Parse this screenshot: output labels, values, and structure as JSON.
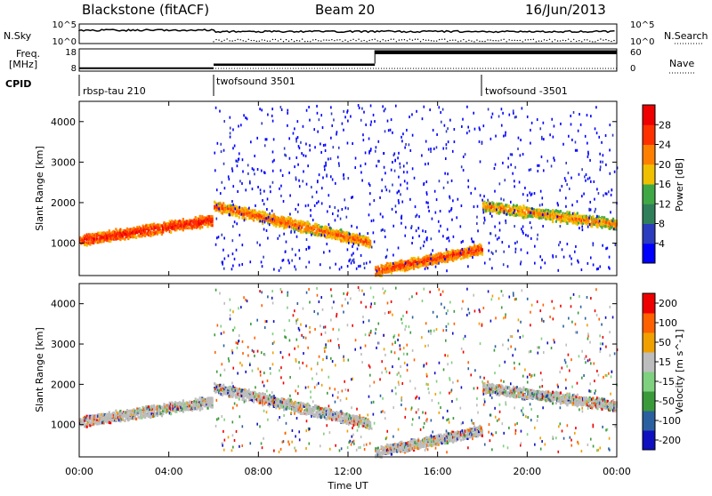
{
  "header": {
    "station": "Blackstone (fitACF)",
    "beam": "Beam 20",
    "date": "16/Jun/2013"
  },
  "top_panels": {
    "nsky": {
      "label": "N.Sky",
      "right_label": "N.Search",
      "ticks_left": [
        "10^5",
        "10^0"
      ],
      "ticks_right": [
        "10^5",
        "10^0"
      ]
    },
    "freq": {
      "label_line1": "Freq.",
      "label_line2": "[MHz]",
      "ticks_left": [
        "18",
        "8"
      ],
      "right_label": "Nave",
      "ticks_right": [
        "60",
        "0"
      ]
    },
    "cpid": {
      "label": "CPID",
      "segments": [
        {
          "name": "rbsp-tau 210",
          "start_hour": 0,
          "end_hour": 6
        },
        {
          "name": "twofsound 3501",
          "start_hour": 6,
          "end_hour": 18
        },
        {
          "name": "twofsound -3501",
          "start_hour": 18,
          "end_hour": 24
        }
      ]
    }
  },
  "chart_data": [
    {
      "type": "heatmap",
      "quantity": "power",
      "ylabel": "Slant Range [km]",
      "ylim": [
        200,
        4500
      ],
      "yticks": [
        1000,
        2000,
        3000,
        4000
      ],
      "xlim_hours": [
        0,
        24
      ],
      "colorbar": {
        "label": "Power [dB]",
        "ticks": [
          4,
          8,
          12,
          16,
          20,
          24,
          28
        ],
        "range": [
          0,
          32
        ],
        "colors": [
          "#0000ff",
          "#2c3cbe",
          "#2f7f5a",
          "#3fa844",
          "#f0c000",
          "#ff8000",
          "#ff3000",
          "#ee0000"
        ]
      },
      "features": [
        {
          "start_hour": 0.0,
          "end_hour": 5.9,
          "range_km": [
            1050,
            1550
          ],
          "level": 24
        },
        {
          "start_hour": 6.0,
          "end_hour": 13.0,
          "range_km": [
            1900,
            1000
          ],
          "level": 20
        },
        {
          "start_hour": 13.2,
          "end_hour": 18.0,
          "range_km": [
            300,
            850
          ],
          "level": 22
        },
        {
          "start_hour": 18.0,
          "end_hour": 24.0,
          "range_km": [
            1900,
            1450
          ],
          "level": 18
        }
      ]
    },
    {
      "type": "heatmap",
      "quantity": "velocity",
      "ylabel": "Slant Range [km]",
      "xlabel": "Time UT",
      "ylim": [
        200,
        4500
      ],
      "yticks": [
        1000,
        2000,
        3000,
        4000
      ],
      "xticks": [
        "00:00",
        "04:00",
        "08:00",
        "12:00",
        "16:00",
        "20:00",
        "00:00"
      ],
      "xlim_hours": [
        0,
        24
      ],
      "colorbar": {
        "label": "Velocity [m s^-1]",
        "ticks": [
          "200",
          "100",
          "50",
          "15",
          "-15",
          "-50",
          "-100",
          "-200"
        ],
        "range": [
          -250,
          250
        ],
        "colors": [
          "#1010c0",
          "#2a60a0",
          "#3a9a3a",
          "#7fd07f",
          "#bdbdbd",
          "#f0a000",
          "#ff6000",
          "#ee0000"
        ]
      }
    }
  ]
}
